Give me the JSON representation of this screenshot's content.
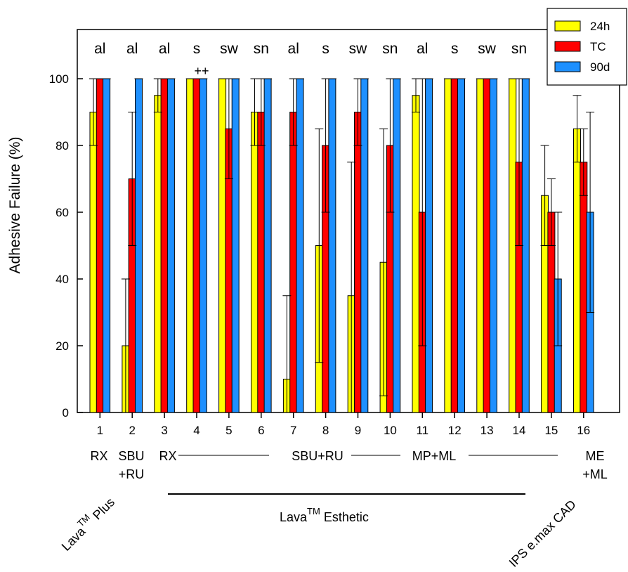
{
  "chart_data": {
    "type": "bar",
    "ylabel": "Adhesive Failure (%)",
    "xlabel": "",
    "ylim": [
      0,
      110
    ],
    "y_ticks": [
      0,
      20,
      40,
      60,
      80,
      100
    ],
    "grid": false,
    "legend_position": "top-right",
    "categories": [
      "1",
      "2",
      "3",
      "4",
      "5",
      "6",
      "7",
      "8",
      "9",
      "10",
      "11",
      "12",
      "13",
      "14",
      "15",
      "16"
    ],
    "top_labels": [
      "al",
      "al",
      "al",
      "s",
      "sw",
      "sn",
      "al",
      "s",
      "sw",
      "sn",
      "al",
      "s",
      "sw",
      "sn",
      "",
      ""
    ],
    "annotation_marker": "++",
    "annotation_category": "4",
    "series": [
      {
        "name": "24h",
        "color": "#ffff00",
        "values": [
          90,
          20,
          95,
          100,
          100,
          90,
          10,
          50,
          35,
          45,
          95,
          100,
          100,
          100,
          65,
          85
        ],
        "err_up": [
          100,
          40,
          100,
          100,
          100,
          100,
          35,
          85,
          75,
          85,
          100,
          100,
          100,
          100,
          80,
          95
        ],
        "err_down": [
          80,
          0,
          90,
          100,
          100,
          80,
          0,
          15,
          0,
          5,
          90,
          100,
          100,
          100,
          50,
          75
        ]
      },
      {
        "name": "TC",
        "color": "#ff0000",
        "values": [
          100,
          70,
          100,
          100,
          85,
          90,
          90,
          80,
          90,
          80,
          60,
          100,
          100,
          75,
          60,
          75
        ],
        "err_up": [
          100,
          90,
          100,
          100,
          100,
          100,
          100,
          100,
          100,
          100,
          100,
          100,
          100,
          100,
          70,
          85
        ],
        "err_down": [
          100,
          50,
          100,
          100,
          70,
          80,
          80,
          60,
          80,
          60,
          20,
          100,
          100,
          50,
          50,
          65
        ]
      },
      {
        "name": "90d",
        "color": "#1e90ff",
        "values": [
          100,
          100,
          100,
          100,
          100,
          100,
          100,
          100,
          100,
          100,
          100,
          100,
          100,
          100,
          40,
          60
        ],
        "err_up": [
          100,
          100,
          100,
          100,
          100,
          100,
          100,
          100,
          100,
          100,
          100,
          100,
          100,
          100,
          60,
          90
        ],
        "err_down": [
          100,
          100,
          100,
          100,
          100,
          100,
          100,
          100,
          100,
          100,
          100,
          100,
          100,
          100,
          20,
          30
        ]
      }
    ],
    "treatment_labels": {
      "rx_1": "RX",
      "sbu_ru_2_line1": "SBU",
      "sbu_ru_2_line2": "+RU",
      "rx_3": "RX",
      "sbu_ru_7": "SBU+RU",
      "mp_ml_11": "MP+ML",
      "me_ml_16_line1": "ME",
      "me_ml_16_line2": "+ML"
    },
    "material_labels": {
      "lava_plus_main": "Lava",
      "lava_plus_sup": "TM",
      "lava_plus_suffix": "Plus",
      "lava_esthetic_main": "Lava",
      "lava_esthetic_sup": "TM",
      "lava_esthetic_suffix": "Esthetic",
      "ips": "IPS e.max CAD"
    }
  }
}
